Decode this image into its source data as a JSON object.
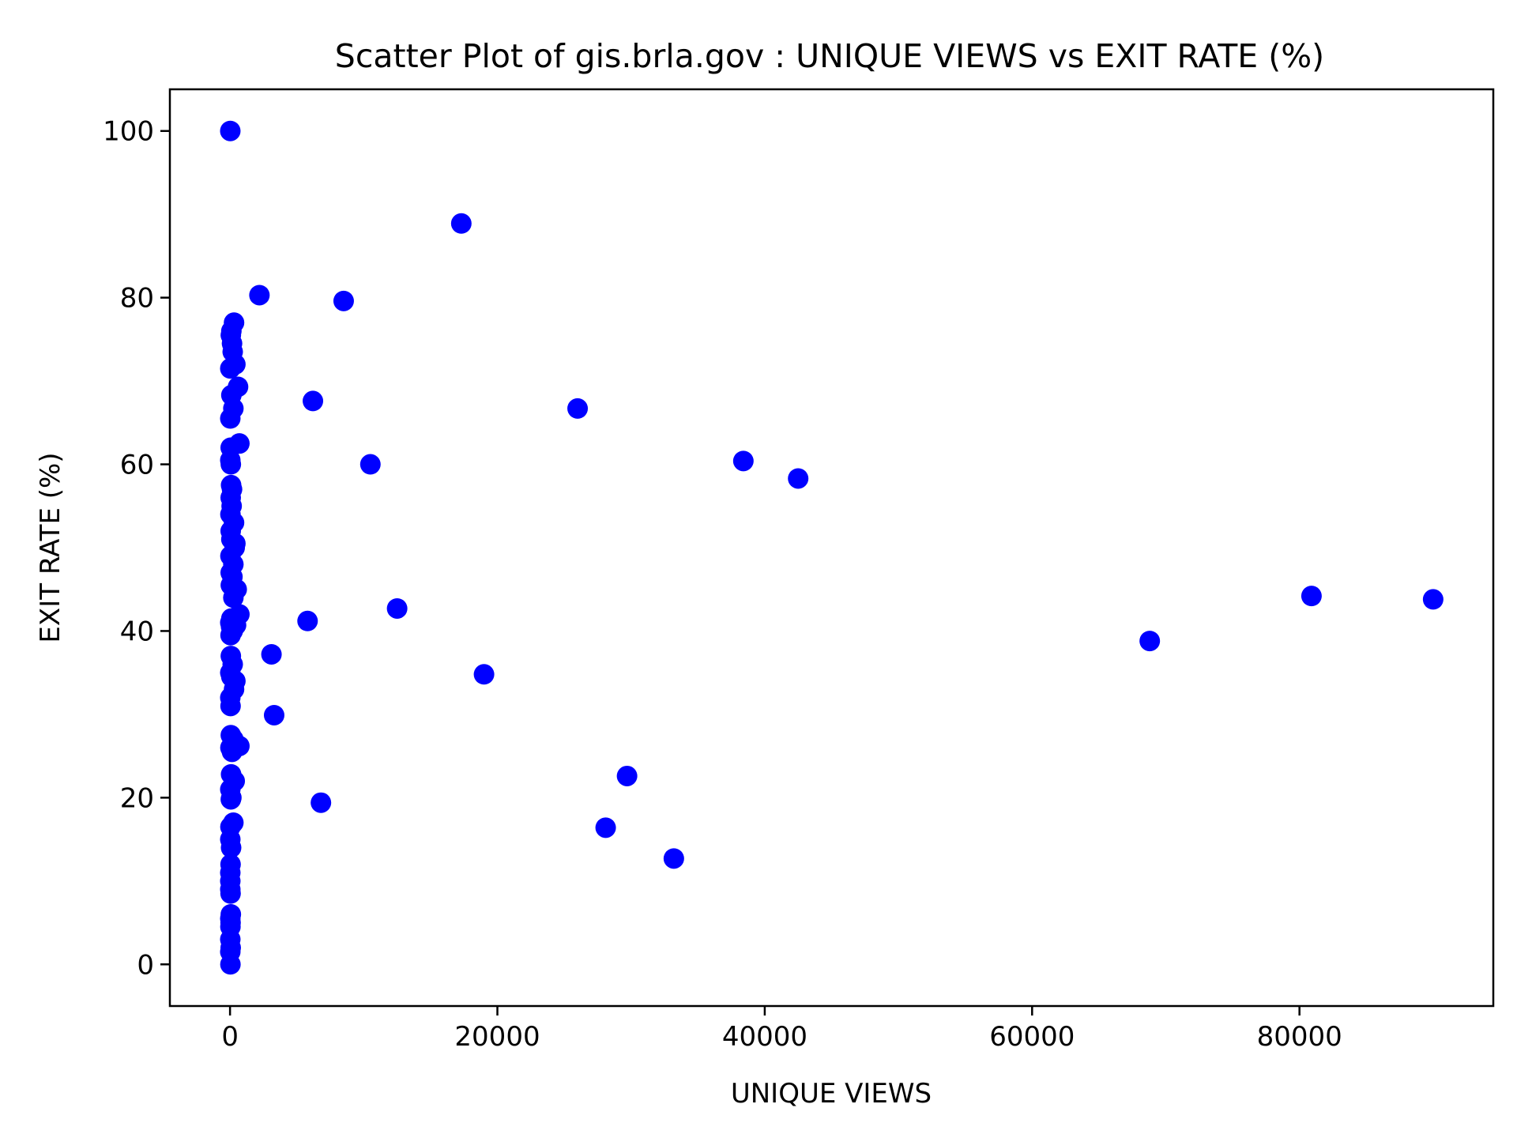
{
  "chart_data": {
    "type": "scatter",
    "title": "Scatter Plot of gis.brla.gov : UNIQUE VIEWS vs EXIT RATE (%)",
    "xlabel": "UNIQUE VIEWS",
    "ylabel": "EXIT RATE (%)",
    "xlim": [
      -4500,
      94500
    ],
    "ylim": [
      -5,
      105
    ],
    "xticks": [
      0,
      20000,
      40000,
      60000,
      80000
    ],
    "yticks": [
      0,
      20,
      40,
      60,
      80,
      100
    ],
    "xtick_labels": [
      "0",
      "20000",
      "40000",
      "60000",
      "80000"
    ],
    "ytick_labels": [
      "0",
      "20",
      "40",
      "60",
      "80",
      "100"
    ],
    "grid": false,
    "legend": "none",
    "marker_color": "#0000ff",
    "series": [
      {
        "x": [
          20,
          300,
          100,
          60,
          150,
          200,
          400,
          20,
          600,
          100,
          250,
          20,
          700,
          50,
          20,
          60,
          80,
          150,
          50,
          120,
          30,
          300,
          50,
          100,
          400,
          350,
          30,
          250,
          50,
          180,
          60,
          500,
          250,
          700,
          100,
          20,
          80,
          200,
          40,
          450,
          60,
          200,
          20,
          100,
          400,
          300,
          20,
          40,
          700,
          60,
          250,
          30,
          150,
          80,
          350,
          20,
          100,
          60,
          250,
          30,
          20,
          80,
          40,
          20,
          20,
          2200,
          8500,
          17300,
          6200,
          26000,
          10500,
          38400,
          42500,
          5800,
          12500,
          3100,
          19000,
          3300,
          6800,
          28100,
          29700,
          33200,
          68800,
          80900,
          90000
        ],
        "y": [
          100,
          77,
          76,
          75.5,
          74.5,
          73.5,
          72,
          71.5,
          69.3,
          68.3,
          66.7,
          65.5,
          62.5,
          62,
          60.5,
          60,
          57.5,
          57,
          56,
          55,
          54,
          53,
          52,
          51,
          50.5,
          50,
          49,
          48,
          47,
          46.5,
          45.5,
          45,
          44,
          42,
          41.5,
          41,
          40.5,
          40,
          39.5,
          40.7,
          37,
          36,
          35,
          34.5,
          34,
          33,
          32,
          31,
          26.2,
          27.5,
          27,
          26,
          25.5,
          22.8,
          22,
          21,
          20,
          19.8,
          17,
          16.5,
          15,
          14,
          12,
          11,
          10,
          80.3,
          79.6,
          88.9,
          67.6,
          66.7,
          60,
          60.4,
          58.3,
          41.2,
          42.7,
          37.2,
          34.8,
          29.9,
          19.4,
          16.4,
          22.6,
          12.7,
          38.8,
          44.2,
          43.8
        ]
      },
      {
        "x": [
          20,
          40,
          60,
          20,
          40,
          30,
          20,
          50,
          20,
          30
        ],
        "y": [
          9,
          8.5,
          6,
          5.5,
          5,
          4.5,
          3,
          2,
          1.5,
          0
        ]
      }
    ]
  }
}
